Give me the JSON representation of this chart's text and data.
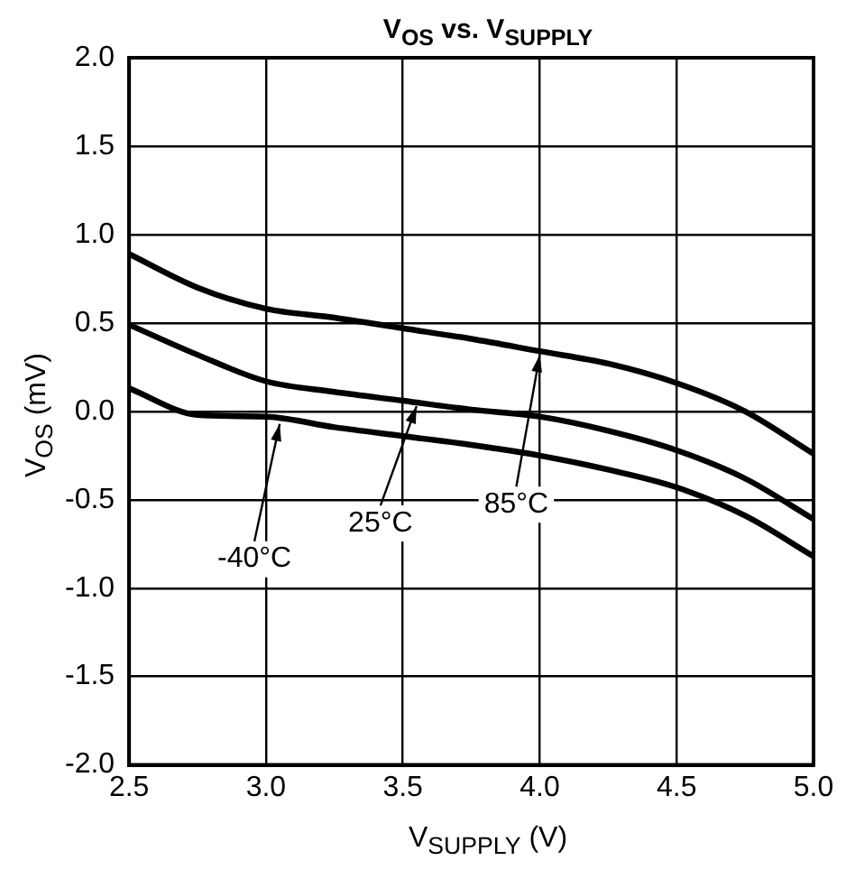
{
  "chart_data": {
    "type": "line",
    "title": "V$_{OS}$ vs. V$_{SUPPLY}$",
    "xlabel": "V$_{SUPPLY}$ (V)",
    "ylabel": "V$_{OS}$ (mV)",
    "x": [
      2.5,
      2.75,
      3.0,
      3.25,
      3.5,
      3.75,
      4.0,
      4.25,
      4.5,
      4.75,
      5.0
    ],
    "series": [
      {
        "color": "#000000",
        "values": [
          0.89,
          0.7,
          0.58,
          0.53,
          0.47,
          0.41,
          0.34,
          0.27,
          0.16,
          0.0,
          -0.24
        ]
      },
      {
        "color": "#000000",
        "values": [
          0.49,
          0.32,
          0.17,
          0.11,
          0.06,
          0.01,
          -0.03,
          -0.11,
          -0.22,
          -0.38,
          -0.61
        ]
      },
      {
        "color": "#000000",
        "values": [
          0.13,
          -0.02,
          -0.03,
          -0.09,
          -0.14,
          -0.19,
          -0.25,
          -0.33,
          -0.43,
          -0.59,
          -0.82
        ]
      }
    ],
    "xlim": [
      2.5,
      5.0
    ],
    "xticks": [
      {
        "value": 2.5,
        "label": "2.5"
      },
      {
        "value": 3.0,
        "label": "3.0"
      },
      {
        "value": 3.5,
        "label": "3.5"
      },
      {
        "value": 4.0,
        "label": "4.0"
      },
      {
        "value": 4.5,
        "label": "4.5"
      },
      {
        "value": 5.0,
        "label": "5.0"
      }
    ],
    "ylim": [
      -2.0,
      2.0
    ],
    "yticks": [
      {
        "value": -2.0,
        "label": "-2.0"
      },
      {
        "value": -1.5,
        "label": "-1.5"
      },
      {
        "value": -1.0,
        "label": "-1.0"
      },
      {
        "value": -0.5,
        "label": "-0.5"
      },
      {
        "value": 0.0,
        "label": "0.0"
      },
      {
        "value": 0.5,
        "label": "0.5"
      },
      {
        "value": 1.0,
        "label": "1.0"
      },
      {
        "value": 1.5,
        "label": "1.5"
      },
      {
        "value": 2.0,
        "label": "2.0"
      }
    ],
    "grid": true,
    "legend": false,
    "marker": "none",
    "line_style": "solid",
    "annotations": [
      {
        "text": "-40°C",
        "x": 3.05,
        "y": -0.04
      },
      {
        "text": "25°C",
        "x": 3.55,
        "y": 0.06
      },
      {
        "text": "85°C",
        "x": 4.0,
        "y": 0.35
      }
    ]
  }
}
